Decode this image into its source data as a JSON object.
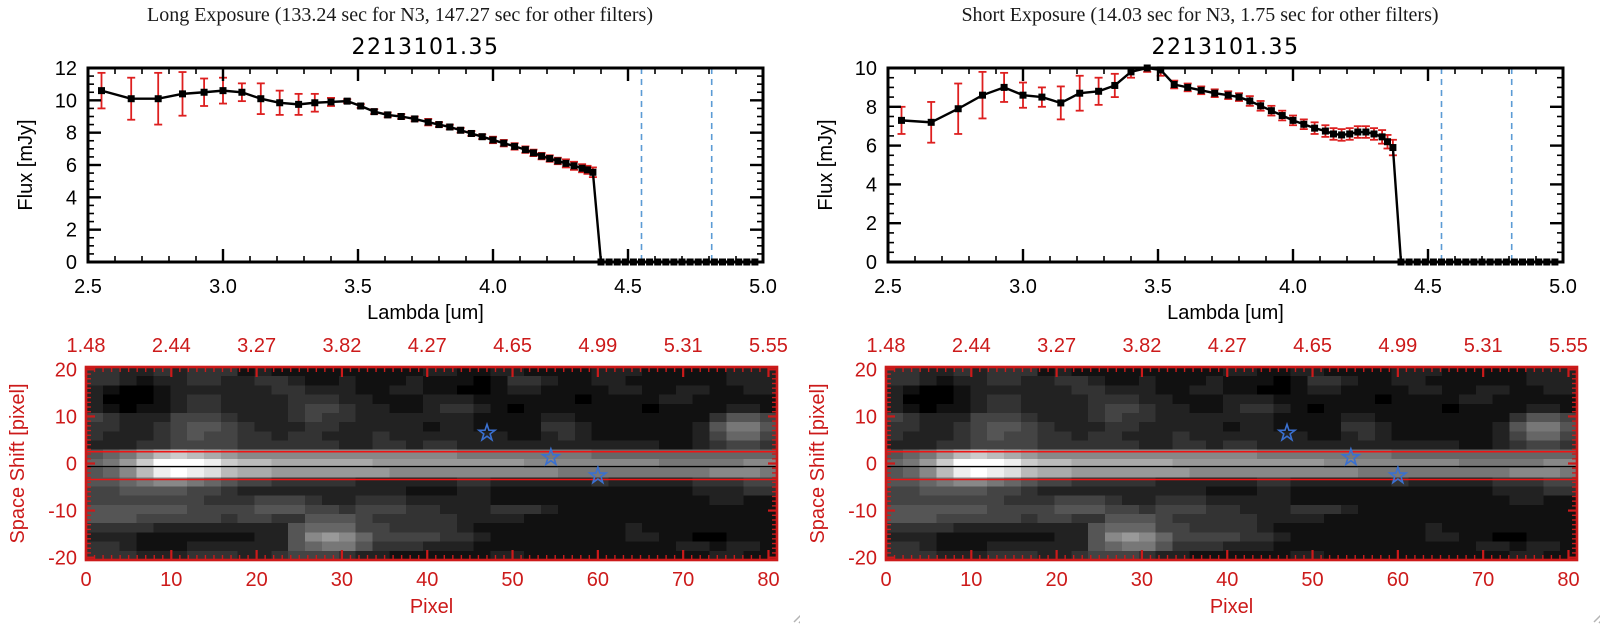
{
  "colors": {
    "plot_black": "#000000",
    "error_red": "#dd1f1f",
    "image_axis_red": "#cc1a1a",
    "aperture_red": "#ee1414",
    "dashed_blue": "#5b9bd5",
    "star_blue": "#3a70d0",
    "grip_gray": "#b4b4b4",
    "background": "#ffffff"
  },
  "chart_data": [
    {
      "type": "line",
      "panel_header": "Long Exposure (133.24 sec for N3, 147.27 sec for other filters)",
      "title": "2213101.35",
      "xlabel": "Lambda [um]",
      "ylabel": "Flux [mJy]",
      "xlim": [
        2.5,
        5.0
      ],
      "ylim": [
        0,
        12
      ],
      "xticks": [
        2.5,
        3.0,
        3.5,
        4.0,
        4.5,
        5.0
      ],
      "yticks": [
        0,
        2,
        4,
        6,
        8,
        10,
        12
      ],
      "x_minor_step": 0.1,
      "y_minor_step": 0.5,
      "marker": "filled-square",
      "x": [
        2.55,
        2.66,
        2.76,
        2.85,
        2.93,
        3.0,
        3.07,
        3.14,
        3.21,
        3.28,
        3.34,
        3.4,
        3.46,
        3.51,
        3.56,
        3.61,
        3.66,
        3.71,
        3.76,
        3.8,
        3.84,
        3.88,
        3.92,
        3.96,
        4.0,
        4.04,
        4.08,
        4.12,
        4.15,
        4.18,
        4.21,
        4.24,
        4.27,
        4.3,
        4.33,
        4.35,
        4.37
      ],
      "y": [
        10.6,
        10.1,
        10.1,
        10.4,
        10.5,
        10.6,
        10.5,
        10.1,
        9.85,
        9.75,
        9.85,
        9.9,
        9.95,
        9.65,
        9.3,
        9.1,
        9.0,
        8.85,
        8.65,
        8.5,
        8.35,
        8.15,
        7.95,
        7.75,
        7.55,
        7.35,
        7.15,
        6.95,
        6.75,
        6.55,
        6.4,
        6.25,
        6.1,
        5.95,
        5.8,
        5.7,
        5.55
      ],
      "yerr": [
        1.1,
        1.3,
        1.6,
        1.35,
        0.85,
        0.8,
        0.55,
        0.95,
        0.75,
        0.65,
        0.55,
        0.25,
        0.12,
        0.12,
        0.15,
        0.15,
        0.15,
        0.15,
        0.2,
        0.15,
        0.15,
        0.15,
        0.15,
        0.15,
        0.2,
        0.2,
        0.2,
        0.2,
        0.2,
        0.2,
        0.2,
        0.2,
        0.25,
        0.25,
        0.25,
        0.25,
        0.3
      ],
      "zero_x": [
        4.4,
        4.43,
        4.46,
        4.49,
        4.52,
        4.55,
        4.58,
        4.61,
        4.64,
        4.67,
        4.7,
        4.73,
        4.76,
        4.79,
        4.82,
        4.85,
        4.88,
        4.91,
        4.94,
        4.97
      ],
      "vlines_blue_dashed": [
        4.55,
        4.81
      ],
      "zero_red_dashed_from": 4.39
    },
    {
      "type": "line",
      "panel_header": "Short Exposure (14.03 sec for N3, 1.75 sec for other filters)",
      "title": "2213101.35",
      "xlabel": "Lambda [um]",
      "ylabel": "Flux [mJy]",
      "xlim": [
        2.5,
        5.0
      ],
      "ylim": [
        0,
        10
      ],
      "xticks": [
        2.5,
        3.0,
        3.5,
        4.0,
        4.5,
        5.0
      ],
      "yticks": [
        0,
        2,
        4,
        6,
        8,
        10
      ],
      "x_minor_step": 0.1,
      "y_minor_step": 0.5,
      "marker": "filled-square",
      "x": [
        2.55,
        2.66,
        2.76,
        2.85,
        2.93,
        3.0,
        3.07,
        3.14,
        3.21,
        3.28,
        3.34,
        3.4,
        3.46,
        3.51,
        3.56,
        3.61,
        3.66,
        3.71,
        3.76,
        3.8,
        3.84,
        3.88,
        3.92,
        3.96,
        4.0,
        4.04,
        4.08,
        4.12,
        4.15,
        4.18,
        4.21,
        4.24,
        4.27,
        4.3,
        4.33,
        4.35,
        4.37
      ],
      "y": [
        7.3,
        7.2,
        7.9,
        8.6,
        9.0,
        8.6,
        8.5,
        8.2,
        8.7,
        8.8,
        9.1,
        9.8,
        10.0,
        9.9,
        9.15,
        9.0,
        8.85,
        8.7,
        8.6,
        8.5,
        8.3,
        8.05,
        7.8,
        7.55,
        7.3,
        7.1,
        6.9,
        6.75,
        6.6,
        6.55,
        6.6,
        6.7,
        6.7,
        6.6,
        6.45,
        6.2,
        5.9
      ],
      "yerr": [
        0.7,
        1.05,
        1.3,
        1.2,
        0.75,
        0.65,
        0.5,
        0.85,
        0.9,
        0.7,
        0.6,
        0.3,
        0.2,
        0.3,
        0.2,
        0.2,
        0.2,
        0.2,
        0.2,
        0.2,
        0.25,
        0.25,
        0.25,
        0.25,
        0.25,
        0.25,
        0.3,
        0.3,
        0.3,
        0.3,
        0.3,
        0.3,
        0.3,
        0.3,
        0.35,
        0.35,
        0.4
      ],
      "zero_x": [
        4.4,
        4.43,
        4.46,
        4.49,
        4.52,
        4.55,
        4.58,
        4.61,
        4.64,
        4.67,
        4.7,
        4.73,
        4.76,
        4.79,
        4.82,
        4.85,
        4.88,
        4.91,
        4.94,
        4.97
      ],
      "vlines_blue_dashed": [
        4.55,
        4.81
      ],
      "zero_red_dashed_from": 4.39
    },
    {
      "type": "heatmap",
      "xlabel": "Pixel",
      "ylabel": "Space Shift [pixel]",
      "top_axis_labels": [
        "1.48",
        "2.44",
        "3.27",
        "3.82",
        "4.27",
        "4.65",
        "4.99",
        "5.31",
        "5.55"
      ],
      "xticks": [
        0,
        10,
        20,
        30,
        40,
        50,
        60,
        70,
        80
      ],
      "yticks": [
        20,
        10,
        0,
        -10,
        -20
      ],
      "xlim": [
        0,
        81
      ],
      "ylim": [
        -20.5,
        20.5
      ],
      "aperture_lines_y": [
        2.5,
        -3.4
      ],
      "trace_line_y": -0.65,
      "stars": [
        [
          47,
          6.5
        ],
        [
          54.5,
          1.3
        ],
        [
          60,
          -2.6
        ]
      ],
      "grid_cols": 41,
      "grid_rows": 21,
      "grid": [
        "33223233312111111111221122111122211111222",
        "33212233223321121112111013321122111111222",
        "21001222222332221122110012211112211221122",
        "20001233222233322111222111111011112211111",
        "21011233222234432211233210111111101111221",
        "43222444322234332222222111122111111113554",
        "33223455432223322222122111133211111125775",
        "32223454433233222322222221123211111124664",
        "22233444433333322332332222222222221123443",
        "5679bcba988888888888887777777766666666666",
        "679cfffecbbaaaaaa999999999888888887777788",
        "568befedbaa999999988888888887777777778887",
        "55678876544333332222223322222232222233344",
        "44555544322222222221112211111111111122233",
        "44444443334443223332222211111111111112211",
        "55555544445554434443322233321111111111111",
        "55544444344335554333332222111111111111111",
        "33332222222256664433332111111111211111111",
        "22211111112258986444433211111111221100111",
        "33211122222256775333222111111111111221221",
        "33322233322344432211111122111111111112211"
      ]
    }
  ]
}
